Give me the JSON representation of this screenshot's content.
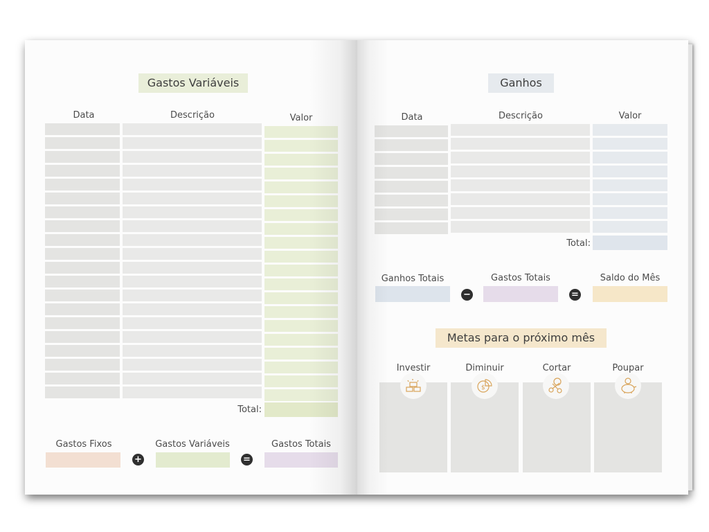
{
  "left_page": {
    "title": "Gastos Variáveis",
    "columns": [
      "Data",
      "Descrição",
      "Valor"
    ],
    "total_label": "Total:",
    "summary": [
      {
        "label": "Gastos Fixos",
        "color": "#f3dfd2"
      },
      {
        "label": "Gastos Variáveis",
        "color": "#e3ebcf"
      },
      {
        "label": "Gastos Totais",
        "color": "#e6dcea"
      }
    ],
    "operators": [
      "+",
      "="
    ]
  },
  "right_page": {
    "title": "Ganhos",
    "columns": [
      "Data",
      "Descrição",
      "Valor"
    ],
    "total_label": "Total:",
    "summary": [
      {
        "label": "Ganhos Totais",
        "color": "#dde4ec"
      },
      {
        "label": "Gastos Totais",
        "color": "#e6dcea"
      },
      {
        "label": "Saldo do Mês",
        "color": "#f6e7c8"
      }
    ],
    "operators": [
      "−",
      "="
    ],
    "goals_title": "Metas para o próximo mês",
    "goals": [
      {
        "label": "Investir",
        "icon": "gold-bars-icon"
      },
      {
        "label": "Diminuir",
        "icon": "coin-chart-icon"
      },
      {
        "label": "Cortar",
        "icon": "scissors-icon"
      },
      {
        "label": "Poupar",
        "icon": "piggy-bank-icon"
      }
    ]
  },
  "colors": {
    "title_left_bg": "#e9eed9",
    "title_right_bg": "#e6eaee",
    "goals_title_bg": "#f5e7cc",
    "icon_stroke": "#d9a45a"
  }
}
